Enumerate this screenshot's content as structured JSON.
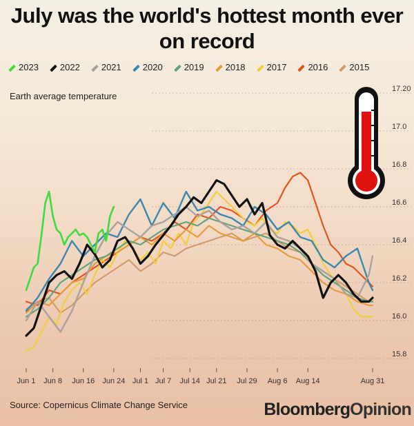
{
  "title": "July was the world's hottest month ever on record",
  "subtitle": "Earth average temperature",
  "source": "Source: Copernicus Climate Change Service",
  "brand": {
    "part1": "Bloomberg",
    "part2": "Opinion"
  },
  "icons": [
    "thermometer-icon"
  ],
  "chart_data": {
    "type": "line",
    "ylabel": "",
    "xlabel": "",
    "ylim": [
      15.8,
      17.2
    ],
    "yticks": [
      15.8,
      16.0,
      16.2,
      16.4,
      16.6,
      16.8,
      17.0,
      17.2
    ],
    "ytick_labels": [
      "15.8",
      "16.0",
      "16.2",
      "16.4",
      "16.6",
      "16.8",
      "17.0",
      "17.20"
    ],
    "xlim": [
      0,
      91
    ],
    "xticks": [
      0,
      7,
      15,
      23,
      30,
      36,
      43,
      50,
      58,
      66,
      74,
      91
    ],
    "xtick_labels": [
      "Jun 1",
      "Jun 8",
      "Jun 16",
      "Jun 24",
      "Jul 1",
      "Jul 7",
      "Jul 14",
      "Jul 21",
      "Jul 29",
      "Aug 6",
      "Aug 14",
      "Aug 31"
    ],
    "legend_position": "top",
    "series": [
      {
        "name": "2023",
        "color": "#3ddc3a",
        "width": 2.6,
        "x": [
          0,
          1,
          2,
          3,
          4,
          5,
          6,
          7,
          8,
          9,
          10,
          11,
          12,
          13,
          14,
          15,
          16,
          17,
          18,
          19,
          20,
          21,
          22,
          23
        ],
        "y": [
          16.16,
          16.22,
          16.28,
          16.3,
          16.45,
          16.62,
          16.68,
          16.55,
          16.48,
          16.46,
          16.4,
          16.44,
          16.46,
          16.48,
          16.45,
          16.46,
          16.44,
          16.4,
          16.36,
          16.46,
          16.48,
          16.42,
          16.55,
          16.6
        ]
      },
      {
        "name": "2022",
        "color": "#111111",
        "width": 3.2,
        "x": [
          0,
          2,
          4,
          6,
          8,
          10,
          12,
          14,
          16,
          18,
          20,
          22,
          24,
          26,
          28,
          30,
          32,
          34,
          36,
          38,
          40,
          42,
          44,
          46,
          48,
          50,
          52,
          54,
          56,
          58,
          60,
          62,
          64,
          66,
          68,
          70,
          72,
          74,
          76,
          78,
          80,
          82,
          84,
          86,
          88,
          90,
          91
        ],
        "y": [
          15.92,
          15.96,
          16.08,
          16.2,
          16.24,
          16.26,
          16.22,
          16.3,
          16.4,
          16.35,
          16.28,
          16.32,
          16.42,
          16.44,
          16.38,
          16.3,
          16.34,
          16.4,
          16.45,
          16.5,
          16.56,
          16.6,
          16.65,
          16.62,
          16.68,
          16.74,
          16.72,
          16.66,
          16.6,
          16.64,
          16.56,
          16.62,
          16.45,
          16.4,
          16.38,
          16.42,
          16.38,
          16.34,
          16.26,
          16.12,
          16.2,
          16.24,
          16.2,
          16.14,
          16.1,
          16.1,
          16.12
        ]
      },
      {
        "name": "2021",
        "color": "#a8a29e",
        "width": 2.4,
        "x": [
          0,
          3,
          6,
          9,
          12,
          15,
          18,
          21,
          24,
          27,
          30,
          33,
          36,
          39,
          42,
          45,
          48,
          51,
          54,
          57,
          60,
          63,
          66,
          69,
          72,
          75,
          78,
          81,
          84,
          87,
          90,
          91
        ],
        "y": [
          16.0,
          16.1,
          16.02,
          15.94,
          16.05,
          16.2,
          16.34,
          16.45,
          16.52,
          16.48,
          16.44,
          16.5,
          16.52,
          16.56,
          16.6,
          16.55,
          16.58,
          16.52,
          16.48,
          16.5,
          16.46,
          16.52,
          16.44,
          16.42,
          16.38,
          16.3,
          16.26,
          16.22,
          16.14,
          16.12,
          16.24,
          16.34
        ]
      },
      {
        "name": "2020",
        "color": "#3a88b0",
        "width": 2.4,
        "x": [
          0,
          3,
          6,
          9,
          12,
          15,
          18,
          21,
          24,
          27,
          30,
          33,
          36,
          39,
          42,
          45,
          48,
          51,
          54,
          57,
          60,
          63,
          66,
          69,
          72,
          75,
          78,
          81,
          84,
          87,
          90,
          91
        ],
        "y": [
          16.05,
          16.12,
          16.22,
          16.3,
          16.42,
          16.34,
          16.4,
          16.46,
          16.44,
          16.56,
          16.64,
          16.5,
          16.62,
          16.54,
          16.68,
          16.58,
          16.6,
          16.56,
          16.54,
          16.5,
          16.6,
          16.56,
          16.48,
          16.52,
          16.44,
          16.42,
          16.32,
          16.28,
          16.34,
          16.38,
          16.2,
          16.16
        ]
      },
      {
        "name": "2019",
        "color": "#5fa37a",
        "width": 2.2,
        "x": [
          0,
          3,
          6,
          9,
          12,
          15,
          18,
          21,
          24,
          27,
          30,
          33,
          36,
          39,
          42,
          45,
          48,
          51,
          54,
          57,
          60,
          63,
          66,
          69,
          72,
          75,
          78,
          81,
          84,
          87,
          90,
          91
        ],
        "y": [
          16.02,
          16.06,
          16.12,
          16.2,
          16.24,
          16.28,
          16.32,
          16.34,
          16.38,
          16.42,
          16.4,
          16.44,
          16.48,
          16.5,
          16.52,
          16.5,
          16.54,
          16.52,
          16.5,
          16.48,
          16.46,
          16.44,
          16.42,
          16.4,
          16.36,
          16.3,
          16.24,
          16.2,
          16.16,
          16.12,
          16.1,
          16.1
        ]
      },
      {
        "name": "2018",
        "color": "#e69a3a",
        "width": 2.2,
        "x": [
          0,
          3,
          6,
          9,
          12,
          15,
          18,
          21,
          24,
          27,
          30,
          33,
          36,
          39,
          42,
          45,
          48,
          51,
          54,
          57,
          60,
          63,
          66,
          69,
          72,
          75,
          78,
          81,
          84,
          87,
          90,
          91
        ],
        "y": [
          16.04,
          16.1,
          16.08,
          16.14,
          16.2,
          16.22,
          16.3,
          16.34,
          16.36,
          16.4,
          16.44,
          16.4,
          16.46,
          16.42,
          16.48,
          16.44,
          16.5,
          16.46,
          16.44,
          16.42,
          16.46,
          16.4,
          16.38,
          16.34,
          16.32,
          16.26,
          16.2,
          16.16,
          16.14,
          16.1,
          16.08,
          16.08
        ]
      },
      {
        "name": "2017",
        "color": "#f2cf3a",
        "width": 2.2,
        "x": [
          0,
          2,
          4,
          6,
          8,
          10,
          12,
          14,
          16,
          18,
          20,
          22,
          24,
          26,
          28,
          30,
          32,
          34,
          36,
          38,
          40,
          42,
          44,
          46,
          48,
          50,
          52,
          54,
          56,
          58,
          60,
          62,
          64,
          66,
          68,
          70,
          72,
          74,
          76,
          78,
          80,
          82,
          84,
          86,
          88,
          90,
          91
        ],
        "y": [
          15.84,
          15.86,
          15.94,
          16.02,
          15.98,
          16.1,
          16.16,
          16.2,
          16.14,
          16.24,
          16.32,
          16.28,
          16.36,
          16.42,
          16.38,
          16.32,
          16.36,
          16.3,
          16.42,
          16.38,
          16.46,
          16.4,
          16.52,
          16.56,
          16.62,
          16.68,
          16.64,
          16.6,
          16.56,
          16.52,
          16.5,
          16.54,
          16.48,
          16.46,
          16.52,
          16.5,
          16.46,
          16.48,
          16.4,
          16.3,
          16.24,
          16.2,
          16.14,
          16.06,
          16.02,
          16.02,
          16.02
        ]
      },
      {
        "name": "2016",
        "color": "#e2531f",
        "width": 2.2,
        "x": [
          0,
          3,
          6,
          9,
          12,
          15,
          18,
          21,
          24,
          27,
          30,
          33,
          36,
          39,
          42,
          45,
          48,
          51,
          54,
          57,
          60,
          63,
          66,
          68,
          70,
          72,
          74,
          76,
          78,
          80,
          82,
          84,
          86,
          88,
          90,
          91
        ],
        "y": [
          16.1,
          16.08,
          16.16,
          16.14,
          16.2,
          16.24,
          16.28,
          16.32,
          16.36,
          16.4,
          16.44,
          16.42,
          16.46,
          16.52,
          16.48,
          16.56,
          16.54,
          16.6,
          16.58,
          16.54,
          16.5,
          16.58,
          16.62,
          16.7,
          16.76,
          16.78,
          16.74,
          16.62,
          16.5,
          16.4,
          16.36,
          16.3,
          16.28,
          16.24,
          16.2,
          16.18
        ]
      },
      {
        "name": "2015",
        "color": "#d29a6a",
        "width": 2.2,
        "x": [
          0,
          3,
          6,
          9,
          12,
          15,
          18,
          21,
          24,
          27,
          30,
          33,
          36,
          39,
          42,
          45,
          48,
          51,
          54,
          57,
          60,
          63,
          66,
          69,
          72,
          75,
          78,
          81,
          84,
          87,
          90,
          91
        ],
        "y": [
          16.06,
          16.1,
          16.12,
          16.04,
          16.08,
          16.14,
          16.2,
          16.24,
          16.28,
          16.32,
          16.26,
          16.3,
          16.36,
          16.34,
          16.38,
          16.4,
          16.42,
          16.44,
          16.46,
          16.42,
          16.44,
          16.46,
          16.42,
          16.38,
          16.36,
          16.3,
          16.26,
          16.22,
          16.18,
          16.14,
          16.1,
          16.1
        ]
      }
    ]
  }
}
